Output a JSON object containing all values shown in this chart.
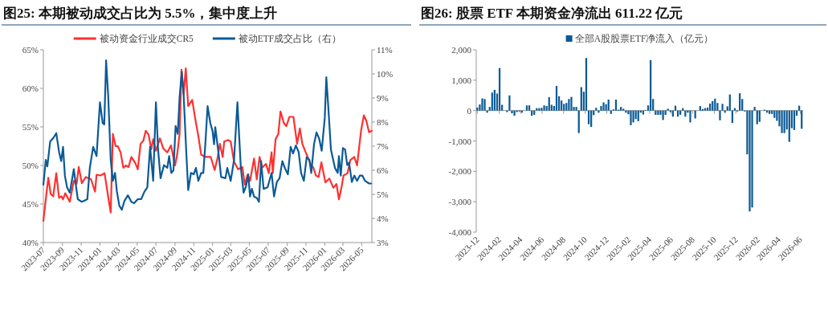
{
  "chart_data": [
    {
      "type": "line",
      "title": "图25:  本期被动成交占比为 5.5%，集中度上升",
      "legend": "top",
      "xlim": [
        "2023-07-01",
        "2026-06-03"
      ],
      "xticks": [
        {
          "value": "2023-07",
          "label": "2023-07"
        },
        {
          "value": "2023-09",
          "label": "2023-09"
        },
        {
          "value": "2023-11",
          "label": "2023-11"
        },
        {
          "value": "2024-01",
          "label": "2024-01"
        },
        {
          "value": "2024-03",
          "label": "2024-03"
        },
        {
          "value": "2024-05",
          "label": "2024-05"
        },
        {
          "value": "2024-07",
          "label": "2024-07"
        },
        {
          "value": "2024-09",
          "label": "2024-09"
        },
        {
          "value": "2024-11",
          "label": "2024-11"
        },
        {
          "value": "2025-01",
          "label": "2025-01"
        },
        {
          "value": "2025-03",
          "label": "2025-03"
        },
        {
          "value": "2025-05",
          "label": "2025-05"
        },
        {
          "value": "2025-07",
          "label": "2025-07"
        },
        {
          "value": "2025-09",
          "label": "2025-09"
        },
        {
          "value": "2025-11",
          "label": "2025-11"
        },
        {
          "value": "2026-01",
          "label": "2026-01"
        },
        {
          "value": "2026-03",
          "label": "2026-03"
        },
        {
          "value": "2026-05",
          "label": "2026-05"
        }
      ],
      "ylim": [
        40,
        65
      ],
      "yticks": [
        {
          "value": 40,
          "label": "40%"
        },
        {
          "value": 45,
          "label": "45%"
        },
        {
          "value": 50,
          "label": "50%"
        },
        {
          "value": 55,
          "label": "55%"
        },
        {
          "value": 60,
          "label": "60%"
        },
        {
          "value": 65,
          "label": "65%"
        }
      ],
      "y2lim": [
        3,
        11
      ],
      "y2ticks": [
        {
          "value": 3,
          "label": "3%"
        },
        {
          "value": 4,
          "label": "4%"
        },
        {
          "value": 5,
          "label": "5%"
        },
        {
          "value": 6,
          "label": "6%"
        },
        {
          "value": 7,
          "label": "7%"
        },
        {
          "value": 8,
          "label": "8%"
        },
        {
          "value": 9,
          "label": "9%"
        },
        {
          "value": 10,
          "label": "10%"
        },
        {
          "value": 11,
          "label": "11%"
        }
      ],
      "series": [
        {
          "name": "被动资金行业成交CR5",
          "color": "#ff3030",
          "x": [
            "2023-07-01",
            "2023-07-08",
            "2023-07-17",
            "2023-07-25",
            "2023-08-02",
            "2023-08-12",
            "2023-08-21",
            "2023-08-29",
            "2023-09-03",
            "2023-09-10",
            "2023-09-25",
            "2023-10-08",
            "2023-10-17",
            "2023-10-24",
            "2023-11-03",
            "2023-11-16",
            "2023-12-03",
            "2023-12-16",
            "2023-12-21",
            "2024-01-03",
            "2024-01-16",
            "2024-01-29",
            "2024-02-05",
            "2024-02-12",
            "2024-02-21",
            "2024-02-28",
            "2024-03-08",
            "2024-03-17",
            "2024-03-25",
            "2024-04-03",
            "2024-04-12",
            "2024-04-25",
            "2024-05-03",
            "2024-05-12",
            "2024-05-21",
            "2024-05-29",
            "2024-06-07",
            "2024-06-16",
            "2024-06-22",
            "2024-07-01",
            "2024-07-14",
            "2024-07-25",
            "2024-08-07",
            "2024-08-19",
            "2024-09-01",
            "2024-09-08",
            "2024-09-16",
            "2024-09-22",
            "2024-09-29",
            "2024-10-06",
            "2024-10-14",
            "2024-10-27",
            "2024-11-06",
            "2024-11-16",
            "2024-11-25",
            "2024-12-08",
            "2024-12-21",
            "2024-12-26",
            "2025-01-08",
            "2025-01-17",
            "2025-01-25",
            "2025-02-03",
            "2025-02-08",
            "2025-02-21",
            "2025-03-01",
            "2025-03-12",
            "2025-03-25",
            "2025-04-08",
            "2025-04-16",
            "2025-04-25",
            "2025-05-03",
            "2025-05-16",
            "2025-05-25",
            "2025-06-03",
            "2025-06-11",
            "2025-06-24",
            "2025-07-03",
            "2025-07-12",
            "2025-07-16",
            "2025-07-25",
            "2025-08-03",
            "2025-08-10",
            "2025-08-21",
            "2025-08-29",
            "2025-09-08",
            "2025-09-21",
            "2025-10-03",
            "2025-10-12",
            "2025-10-20",
            "2025-11-03",
            "2025-11-16",
            "2025-11-25",
            "2025-12-03",
            "2025-12-12",
            "2025-12-21",
            "2026-01-03",
            "2026-01-16",
            "2026-01-29",
            "2026-02-08",
            "2026-02-16",
            "2026-02-25",
            "2026-03-03",
            "2026-03-16",
            "2026-03-25",
            "2026-04-07",
            "2026-04-16",
            "2026-04-29",
            "2026-05-08",
            "2026-05-16",
            "2026-05-25",
            "2026-06-03"
          ],
          "values": [
            42.8,
            45.3,
            48.4,
            46.3,
            46.0,
            49.0,
            45.8,
            46.0,
            45.6,
            46.4,
            45.3,
            48.0,
            47.6,
            49.8,
            47.7,
            48.5,
            48.2,
            46.6,
            48.8,
            48.7,
            49.0,
            45.6,
            43.9,
            54.1,
            52.5,
            52.5,
            51.7,
            49.7,
            50.0,
            49.8,
            51.1,
            50.3,
            49.5,
            52.8,
            53.2,
            54.5,
            54.0,
            52.1,
            53.4,
            51.9,
            53.5,
            52.2,
            51.7,
            52.6,
            50.0,
            51.4,
            54.1,
            62.4,
            59.2,
            62.6,
            57.7,
            58.5,
            56.0,
            53.8,
            51.4,
            51.1,
            51.1,
            51.1,
            49.4,
            50.9,
            52.8,
            51.1,
            53.1,
            53.3,
            53.1,
            50.5,
            49.5,
            49.8,
            47.5,
            48.8,
            48.0,
            50.9,
            48.2,
            51.1,
            49.7,
            50.2,
            49.0,
            51.7,
            49.0,
            53.4,
            54.1,
            57.0,
            55.5,
            55.1,
            56.3,
            56.3,
            52.8,
            54.8,
            52.8,
            51.4,
            50.2,
            49.7,
            48.7,
            48.5,
            50.4,
            47.8,
            48.3,
            47.1,
            47.6,
            45.6,
            47.3,
            48.7,
            49.0,
            50.7,
            51.1,
            50.0,
            54.5,
            56.5,
            55.8,
            54.3,
            54.5
          ]
        },
        {
          "name": "被动ETF成交占比（右）",
          "color": "#0b5a96",
          "axis": "y2",
          "x": [
            "2023-07-01",
            "2023-07-09",
            "2023-07-14",
            "2023-07-23",
            "2023-08-03",
            "2023-08-12",
            "2023-08-21",
            "2023-08-28",
            "2023-09-03",
            "2023-09-09",
            "2023-09-16",
            "2023-09-25",
            "2023-10-08",
            "2023-10-14",
            "2023-10-21",
            "2023-11-03",
            "2023-11-12",
            "2023-11-21",
            "2023-11-29",
            "2023-12-10",
            "2023-12-21",
            "2024-01-01",
            "2024-01-10",
            "2024-01-15",
            "2024-01-21",
            "2024-01-28",
            "2024-02-05",
            "2024-02-12",
            "2024-02-19",
            "2024-02-25",
            "2024-03-04",
            "2024-03-12",
            "2024-03-21",
            "2024-04-01",
            "2024-04-12",
            "2024-04-21",
            "2024-05-03",
            "2024-05-14",
            "2024-05-25",
            "2024-06-03",
            "2024-06-12",
            "2024-06-22",
            "2024-07-01",
            "2024-07-08",
            "2024-07-16",
            "2024-07-27",
            "2024-08-07",
            "2024-08-13",
            "2024-08-20",
            "2024-08-27",
            "2024-09-03",
            "2024-09-10",
            "2024-09-16",
            "2024-09-23",
            "2024-09-29",
            "2024-10-08",
            "2024-10-14",
            "2024-10-23",
            "2024-11-01",
            "2024-11-08",
            "2024-11-16",
            "2024-11-25",
            "2024-12-02",
            "2024-12-08",
            "2024-12-16",
            "2024-12-25",
            "2025-01-01",
            "2025-01-06",
            "2025-01-10",
            "2025-01-21",
            "2025-01-29",
            "2025-02-12",
            "2025-02-18",
            "2025-03-01",
            "2025-03-12",
            "2025-03-23",
            "2025-03-30",
            "2025-04-03",
            "2025-04-12",
            "2025-04-20",
            "2025-04-27",
            "2025-05-03",
            "2025-05-09",
            "2025-05-16",
            "2025-05-25",
            "2025-06-01",
            "2025-06-08",
            "2025-06-16",
            "2025-06-29",
            "2025-07-12",
            "2025-07-20",
            "2025-07-29",
            "2025-08-07",
            "2025-08-16",
            "2025-08-24",
            "2025-09-03",
            "2025-09-12",
            "2025-09-20",
            "2025-09-29",
            "2025-10-08",
            "2025-10-16",
            "2025-10-25",
            "2025-11-03",
            "2025-11-12",
            "2025-11-18",
            "2025-11-27",
            "2025-12-05",
            "2025-12-14",
            "2025-12-22",
            "2026-01-01",
            "2026-01-06",
            "2026-01-12",
            "2026-01-21",
            "2026-02-03",
            "2026-02-12",
            "2026-02-16",
            "2026-02-22",
            "2026-03-01",
            "2026-03-08",
            "2026-03-15",
            "2026-03-21",
            "2026-03-30",
            "2026-04-07",
            "2026-04-16",
            "2026-04-25",
            "2026-05-03",
            "2026-05-12",
            "2026-05-25",
            "2026-06-01"
          ],
          "values": [
            5.4,
            6.43,
            6.16,
            7.19,
            7.35,
            7.54,
            6.76,
            6.38,
            6.97,
            5.77,
            5.29,
            5.07,
            6.05,
            5.45,
            4.8,
            4.69,
            4.74,
            4.8,
            6.1,
            6.97,
            6.59,
            8.82,
            7.95,
            7.9,
            10.56,
            9.04,
            6.43,
            5.56,
            5.89,
            5.12,
            4.53,
            4.36,
            4.74,
            4.96,
            4.69,
            4.63,
            4.8,
            4.8,
            5.12,
            5.29,
            6.97,
            5.56,
            8.82,
            6.86,
            5.67,
            6.21,
            6.1,
            6.59,
            5.89,
            6.0,
            7.84,
            7.51,
            9.04,
            10.08,
            9.15,
            6.65,
            5.18,
            5.89,
            5.83,
            6.1,
            5.56,
            5.89,
            5.89,
            6.97,
            8.66,
            7.95,
            7.63,
            7.08,
            7.79,
            6.65,
            5.72,
            5.67,
            6.1,
            5.56,
            6.43,
            8.82,
            7.08,
            6.1,
            5.07,
            5.34,
            5.83,
            4.91,
            5.23,
            4.91,
            4.85,
            4.69,
            6.38,
            5.23,
            5.29,
            5.89,
            4.91,
            5.51,
            5.67,
            6.38,
            6.1,
            5.83,
            6.97,
            6.7,
            7.03,
            6.76,
            5.89,
            5.56,
            6.54,
            6.43,
            5.89,
            7.08,
            7.57,
            7.3,
            6.81,
            8.17,
            9.86,
            8.71,
            6.86,
            6.1,
            5.89,
            6.59,
            5.78,
            6.92,
            6.86,
            6.21,
            6.32,
            5.51,
            5.78,
            5.56,
            5.78,
            5.78,
            5.56,
            5.45,
            5.45
          ]
        }
      ]
    },
    {
      "type": "bar",
      "title": "图26:  股票 ETF 本期资金净流出 611.22 亿元",
      "legend": "top",
      "xlim": [
        "2023-11-28",
        "2026-06-09"
      ],
      "xticks": [
        {
          "value": "2023-12",
          "label": "2023-12"
        },
        {
          "value": "2024-02",
          "label": "2024-02"
        },
        {
          "value": "2024-04",
          "label": "2024-04"
        },
        {
          "value": "2024-06",
          "label": "2024-06"
        },
        {
          "value": "2024-08",
          "label": "2024-08"
        },
        {
          "value": "2024-10",
          "label": "2024-10"
        },
        {
          "value": "2024-12",
          "label": "2024-12"
        },
        {
          "value": "2025-02",
          "label": "2025-02"
        },
        {
          "value": "2025-04",
          "label": "2025-04"
        },
        {
          "value": "2025-06",
          "label": "2025-06"
        },
        {
          "value": "2025-08",
          "label": "2025-08"
        },
        {
          "value": "2025-10",
          "label": "2025-10"
        },
        {
          "value": "2025-12",
          "label": "2025-12"
        },
        {
          "value": "2026-02",
          "label": "2026-02"
        },
        {
          "value": "2026-04",
          "label": "2026-04"
        },
        {
          "value": "2026-06",
          "label": "2026-06"
        }
      ],
      "ylim": [
        -4000,
        2000
      ],
      "yticks": [
        {
          "value": -4000,
          "label": "-4,000"
        },
        {
          "value": -3000,
          "label": "-3,000"
        },
        {
          "value": -2000,
          "label": "-2,000"
        },
        {
          "value": -1000,
          "label": "-1,000"
        },
        {
          "value": 0,
          "label": "0"
        },
        {
          "value": 1000,
          "label": "1,000"
        },
        {
          "value": 2000,
          "label": "2,000"
        }
      ],
      "series": [
        {
          "name": "全部A股股票ETF净流入（亿元）",
          "color": "#0b5a96",
          "x": [
            "2023-12-01",
            "2023-12-08",
            "2023-12-15",
            "2023-12-22",
            "2023-12-29",
            "2024-01-05",
            "2024-01-12",
            "2024-01-19",
            "2024-01-26",
            "2024-02-02",
            "2024-02-09",
            "2024-02-16",
            "2024-02-23",
            "2024-03-01",
            "2024-03-08",
            "2024-03-15",
            "2024-03-22",
            "2024-03-29",
            "2024-04-05",
            "2024-04-12",
            "2024-04-19",
            "2024-04-26",
            "2024-05-03",
            "2024-05-10",
            "2024-05-17",
            "2024-05-24",
            "2024-05-31",
            "2024-06-07",
            "2024-06-14",
            "2024-06-21",
            "2024-06-28",
            "2024-07-05",
            "2024-07-12",
            "2024-07-19",
            "2024-07-26",
            "2024-08-02",
            "2024-08-09",
            "2024-08-16",
            "2024-08-23",
            "2024-08-30",
            "2024-09-06",
            "2024-09-13",
            "2024-09-20",
            "2024-09-27",
            "2024-10-04",
            "2024-10-11",
            "2024-10-18",
            "2024-10-25",
            "2024-11-01",
            "2024-11-08",
            "2024-11-15",
            "2024-11-22",
            "2024-11-29",
            "2024-12-06",
            "2024-12-13",
            "2024-12-20",
            "2024-12-27",
            "2025-01-03",
            "2025-01-10",
            "2025-01-17",
            "2025-01-24",
            "2025-01-31",
            "2025-02-07",
            "2025-02-14",
            "2025-02-21",
            "2025-02-28",
            "2025-03-07",
            "2025-03-14",
            "2025-03-21",
            "2025-03-28",
            "2025-04-04",
            "2025-04-11",
            "2025-04-18",
            "2025-04-25",
            "2025-05-02",
            "2025-05-09",
            "2025-05-16",
            "2025-05-23",
            "2025-05-30",
            "2025-06-06",
            "2025-06-13",
            "2025-06-20",
            "2025-06-27",
            "2025-07-04",
            "2025-07-11",
            "2025-07-18",
            "2025-07-25",
            "2025-08-01",
            "2025-08-08",
            "2025-08-15",
            "2025-08-22",
            "2025-08-29",
            "2025-09-05",
            "2025-09-12",
            "2025-09-19",
            "2025-09-26",
            "2025-10-03",
            "2025-10-10",
            "2025-10-17",
            "2025-10-24",
            "2025-10-31",
            "2025-11-07",
            "2025-11-14",
            "2025-11-21",
            "2025-11-28",
            "2025-12-05",
            "2025-12-12",
            "2025-12-19",
            "2025-12-26",
            "2026-01-02",
            "2026-01-09",
            "2026-01-16",
            "2026-01-23",
            "2026-01-30",
            "2026-02-06",
            "2026-02-13",
            "2026-02-20",
            "2026-02-27",
            "2026-03-06",
            "2026-03-13",
            "2026-03-20",
            "2026-03-27",
            "2026-04-03",
            "2026-04-10",
            "2026-04-17",
            "2026-04-24",
            "2026-05-01",
            "2026-05-08",
            "2026-05-15",
            "2026-05-22",
            "2026-05-29",
            "2026-06-05"
          ],
          "values": [
            100,
            200,
            400,
            380,
            -70,
            120,
            590,
            680,
            560,
            1400,
            190,
            0,
            -50,
            500,
            -90,
            -170,
            -50,
            -30,
            -70,
            0,
            170,
            170,
            -170,
            -140,
            80,
            80,
            90,
            170,
            150,
            440,
            190,
            150,
            810,
            470,
            330,
            220,
            250,
            380,
            450,
            120,
            120,
            -740,
            770,
            620,
            1730,
            -450,
            -540,
            -150,
            90,
            -70,
            150,
            270,
            210,
            360,
            -110,
            40,
            360,
            30,
            120,
            60,
            -70,
            -120,
            -480,
            -390,
            -280,
            -350,
            -70,
            -130,
            20,
            170,
            1660,
            380,
            -140,
            -140,
            -140,
            -310,
            -140,
            60,
            -50,
            -200,
            160,
            -200,
            -140,
            80,
            -200,
            -70,
            -390,
            0,
            -260,
            0,
            150,
            50,
            80,
            100,
            230,
            310,
            390,
            250,
            -320,
            220,
            -70,
            140,
            530,
            -410,
            80,
            -30,
            570,
            380,
            -30,
            -1440,
            -3320,
            -3190,
            120,
            -450,
            -370,
            0,
            30,
            -70,
            -110,
            -110,
            -240,
            -340,
            -520,
            -740,
            -740,
            -620,
            -1030,
            -580,
            -640,
            -170,
            160,
            -600
          ]
        }
      ]
    }
  ]
}
